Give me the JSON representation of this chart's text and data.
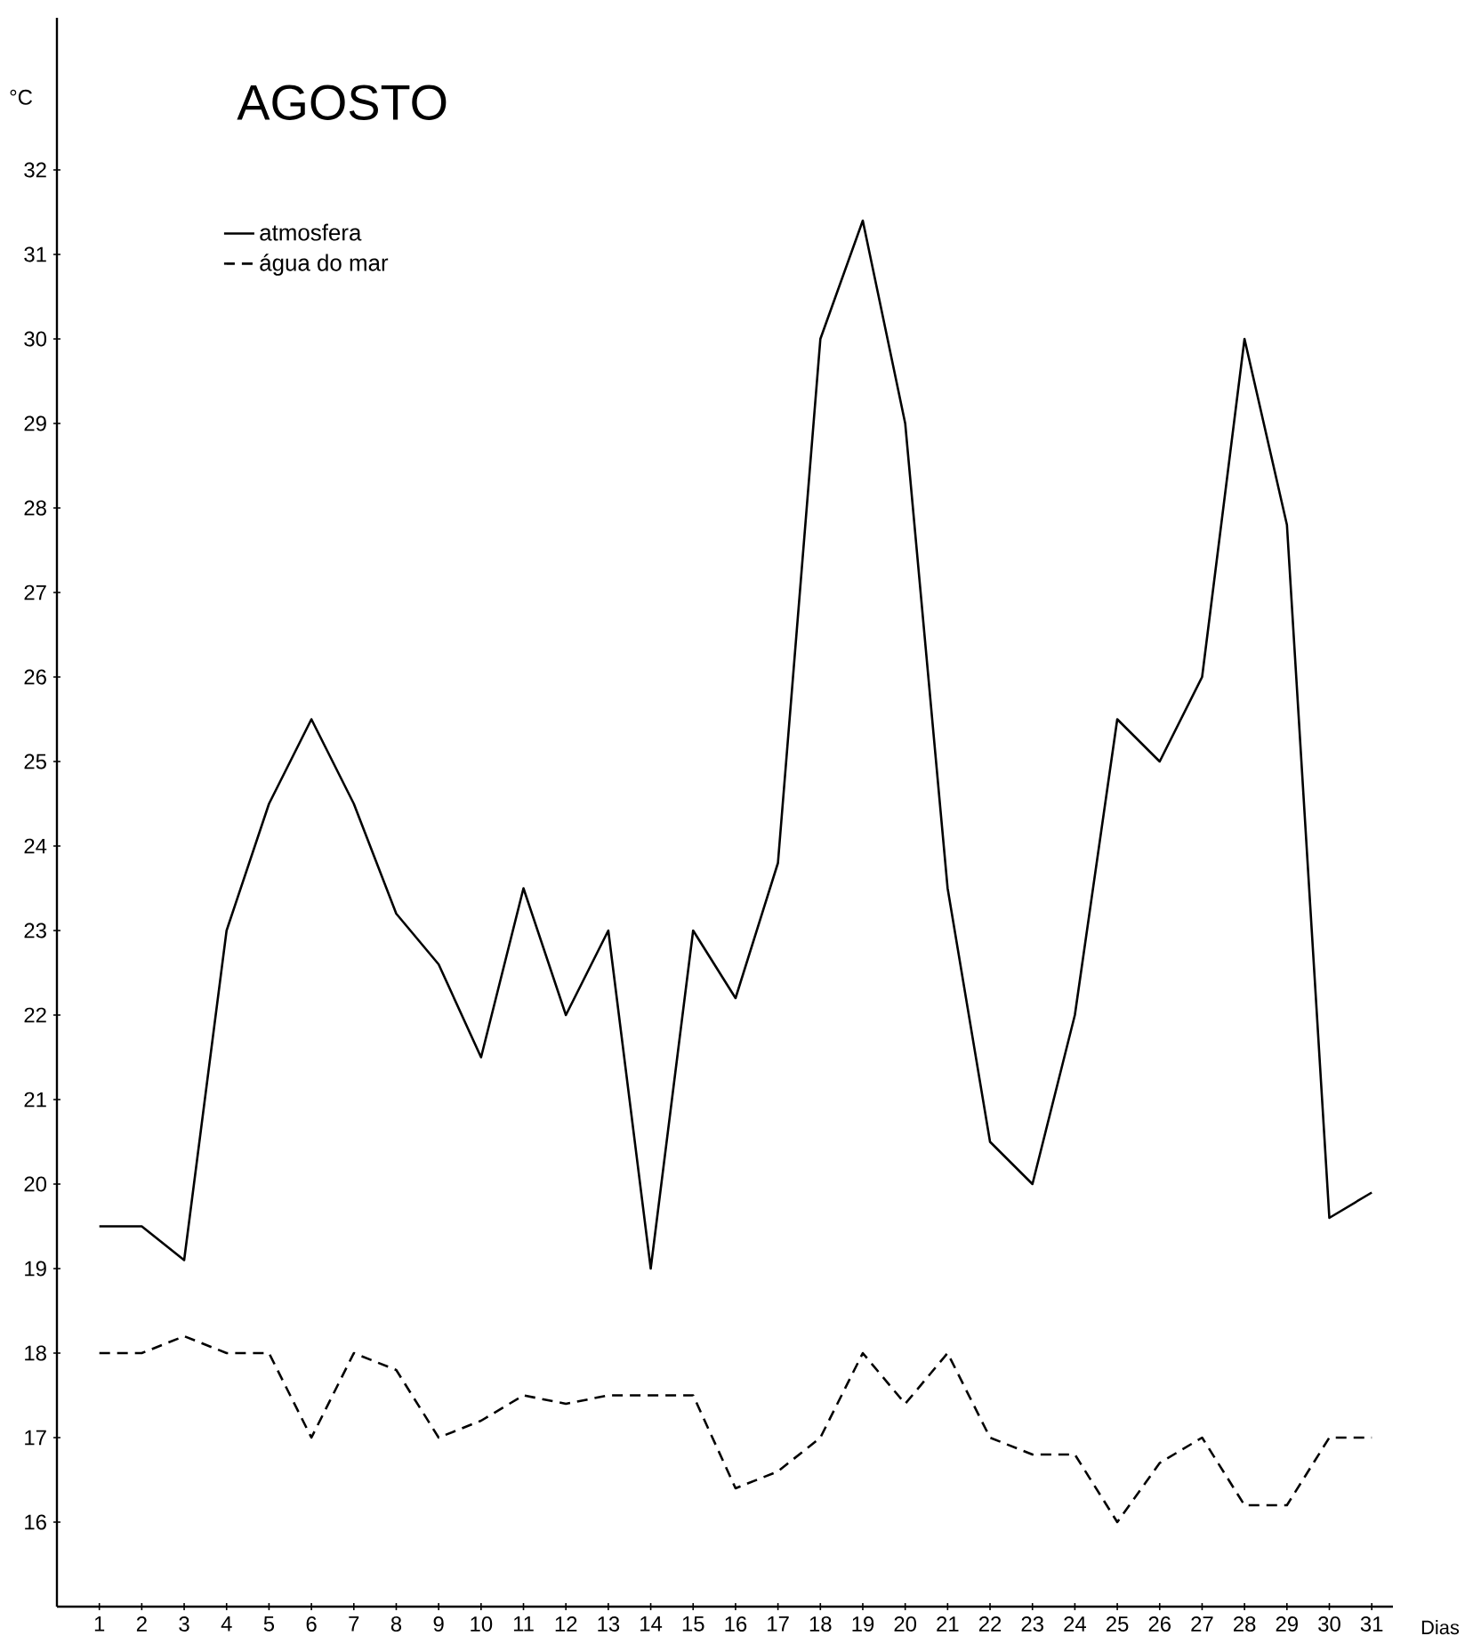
{
  "chart_data": {
    "type": "line",
    "title": "AGOSTO",
    "xlabel": "Dias",
    "ylabel": "°C",
    "x": [
      1,
      2,
      3,
      4,
      5,
      6,
      7,
      8,
      9,
      10,
      11,
      12,
      13,
      14,
      15,
      16,
      17,
      18,
      19,
      20,
      21,
      22,
      23,
      24,
      25,
      26,
      27,
      28,
      29,
      30,
      31
    ],
    "series": [
      {
        "name": "atmosfera",
        "color": "#000000",
        "line_style": "solid",
        "values": [
          19.5,
          19.5,
          19.1,
          23.0,
          24.5,
          25.5,
          24.5,
          23.2,
          22.6,
          21.5,
          23.5,
          22.0,
          23.0,
          19.0,
          23.0,
          22.2,
          23.8,
          30.0,
          31.4,
          29.0,
          23.5,
          20.5,
          20.0,
          22.0,
          25.5,
          25.0,
          26.0,
          30.0,
          27.8,
          19.6,
          19.9
        ]
      },
      {
        "name": "água do mar",
        "color": "#000000",
        "line_style": "dashed",
        "values": [
          18.0,
          18.0,
          18.2,
          18.0,
          18.0,
          17.0,
          18.0,
          17.8,
          17.0,
          17.2,
          17.5,
          17.4,
          17.5,
          17.5,
          17.5,
          16.4,
          16.6,
          17.0,
          18.0,
          17.4,
          18.0,
          17.0,
          16.8,
          16.8,
          16.0,
          16.7,
          17.0,
          16.2,
          16.2,
          17.0,
          17.0
        ]
      }
    ],
    "xlim": [
      0,
      31.5
    ],
    "ylim": [
      15,
      33.8
    ],
    "xticks": [
      1,
      2,
      3,
      4,
      5,
      6,
      7,
      8,
      9,
      10,
      11,
      12,
      13,
      14,
      15,
      16,
      17,
      18,
      19,
      20,
      21,
      22,
      23,
      24,
      25,
      26,
      27,
      28,
      29,
      30,
      31
    ],
    "yticks": [
      16,
      17,
      18,
      19,
      20,
      21,
      22,
      23,
      24,
      25,
      26,
      27,
      28,
      29,
      30,
      31,
      32
    ],
    "legend": "top left",
    "grid": false,
    "marker": "none"
  }
}
